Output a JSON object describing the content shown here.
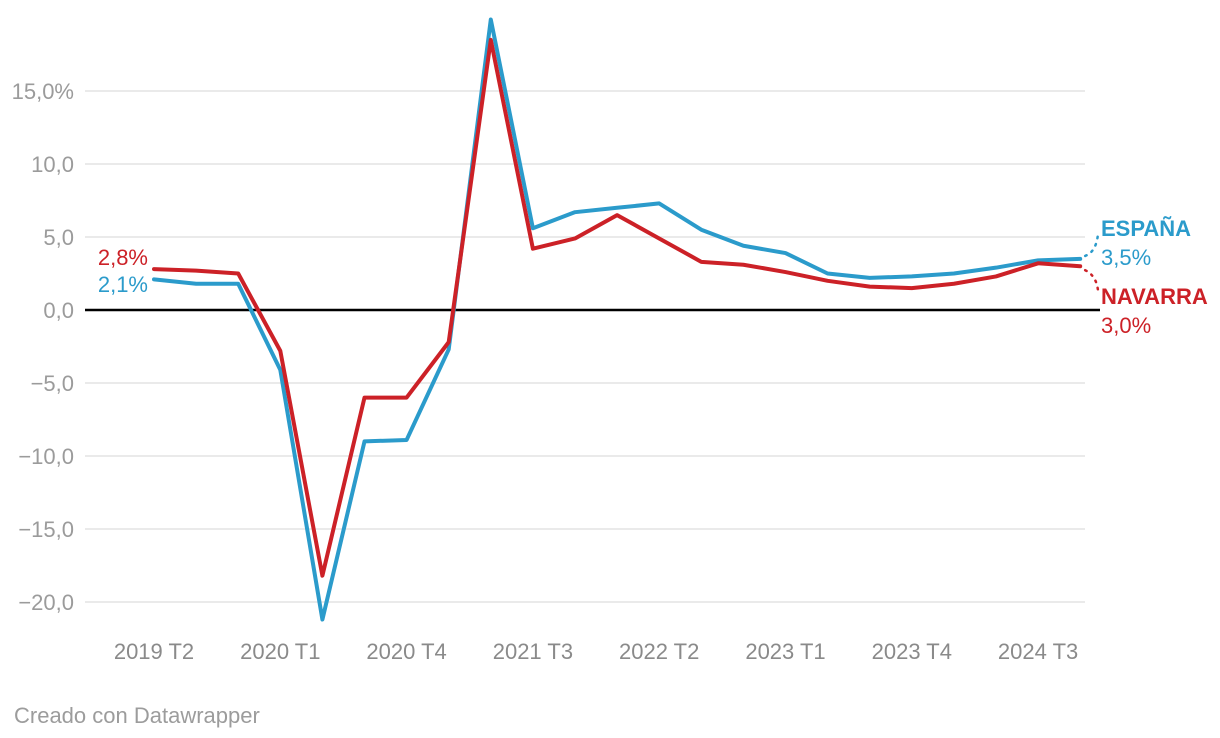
{
  "footer": {
    "credit": "Creado con Datawrapper"
  },
  "colors": {
    "espana": "#2b9bcb",
    "navarra": "#cc2127",
    "zero_line": "#000000",
    "gridline": "#e4e4e4",
    "y_axis_text": "#9b9b9b",
    "x_axis_text": "#8a8a8a"
  },
  "annotations": {
    "start_labels": [
      {
        "series": "NAVARRA",
        "text": "2,8%"
      },
      {
        "series": "ESPAÑA",
        "text": "2,1%"
      }
    ],
    "end_labels": [
      {
        "series": "ESPAÑA",
        "name": "ESPAÑA",
        "value": "3,5%"
      },
      {
        "series": "NAVARRA",
        "name": "NAVARRA",
        "value": "3,0%"
      }
    ]
  },
  "chart_data": {
    "type": "line",
    "x": [
      "2019 T2",
      "2019 T3",
      "2019 T4",
      "2020 T1",
      "2020 T2",
      "2020 T3",
      "2020 T4",
      "2021 T1",
      "2021 T2",
      "2021 T3",
      "2021 T4",
      "2022 T1",
      "2022 T2",
      "2022 T3",
      "2022 T4",
      "2023 T1",
      "2023 T2",
      "2023 T3",
      "2023 T4",
      "2024 T1",
      "2024 T2",
      "2024 T3",
      "2024 T4"
    ],
    "series": [
      {
        "name": "ESPAÑA",
        "color_key": "espana",
        "values": [
          2.1,
          1.8,
          1.8,
          -4.1,
          -21.2,
          -9.0,
          -8.9,
          -2.7,
          19.9,
          5.6,
          6.7,
          7.0,
          7.3,
          5.5,
          4.4,
          3.9,
          2.5,
          2.2,
          2.3,
          2.5,
          2.9,
          3.4,
          3.5
        ]
      },
      {
        "name": "NAVARRA",
        "color_key": "navarra",
        "values": [
          2.8,
          2.7,
          2.5,
          -2.8,
          -18.2,
          -6.0,
          -6.0,
          -2.2,
          18.5,
          4.2,
          4.9,
          6.5,
          4.9,
          3.3,
          3.1,
          2.6,
          2.0,
          1.6,
          1.5,
          1.8,
          2.3,
          3.2,
          3.0
        ]
      }
    ],
    "x_tick_labels": [
      {
        "label": "2019 T2",
        "index": 0
      },
      {
        "label": "2020 T1",
        "index": 3
      },
      {
        "label": "2020 T4",
        "index": 6
      },
      {
        "label": "2021 T3",
        "index": 9
      },
      {
        "label": "2022 T2",
        "index": 12
      },
      {
        "label": "2023 T1",
        "index": 15
      },
      {
        "label": "2023 T4",
        "index": 18
      },
      {
        "label": "2024 T3",
        "index": 21
      }
    ],
    "y_ticks": [
      {
        "label": "15,0%",
        "value": 15
      },
      {
        "label": "10,0",
        "value": 10
      },
      {
        "label": "5,0",
        "value": 5
      },
      {
        "label": "0,0",
        "value": 0
      },
      {
        "label": "−5,0",
        "value": -5
      },
      {
        "label": "−10,0",
        "value": -10
      },
      {
        "label": "−15,0",
        "value": -15
      },
      {
        "label": "−20,0",
        "value": -20
      }
    ],
    "ylim": [
      -22.5,
      20.5
    ],
    "grid": true,
    "legend_position": "direct-end-labels",
    "title": ""
  }
}
